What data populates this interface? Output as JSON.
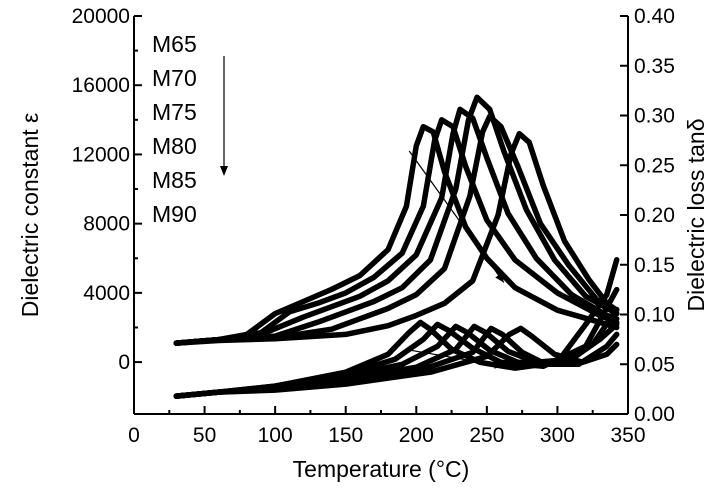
{
  "chart_data": {
    "type": "line",
    "xlabel": "Temperature (°C)",
    "ylabel_left": "Dielectric constant ε",
    "ylabel_right": "Dielectric loss tanδ",
    "xlim": [
      0,
      350
    ],
    "ylim_left": [
      -3000,
      20000
    ],
    "ylim_right": [
      0.0,
      0.4
    ],
    "x_ticks": [
      "0",
      "50",
      "100",
      "150",
      "200",
      "250",
      "300",
      "350"
    ],
    "y_left_ticks": [
      "0",
      "4000",
      "8000",
      "12000",
      "16000",
      "20000"
    ],
    "y_right_ticks": [
      "0.00",
      "0.05",
      "0.10",
      "0.15",
      "0.20",
      "0.25",
      "0.30",
      "0.35",
      "0.40"
    ],
    "legend": [
      "M65",
      "M70",
      "M75",
      "M80",
      "M85",
      "M90"
    ],
    "grid": false,
    "legend_placement": "top-left",
    "series": [
      {
        "name": "M65",
        "permittivity": [
          [
            30,
            1100
          ],
          [
            60,
            1300
          ],
          [
            80,
            1600
          ],
          [
            100,
            2800
          ],
          [
            120,
            3500
          ],
          [
            140,
            4200
          ],
          [
            160,
            5000
          ],
          [
            180,
            6500
          ],
          [
            193,
            9000
          ],
          [
            200,
            12500
          ],
          [
            205,
            13600
          ],
          [
            212,
            13300
          ],
          [
            220,
            11000
          ],
          [
            235,
            7800
          ],
          [
            250,
            6000
          ],
          [
            270,
            4300
          ],
          [
            300,
            3000
          ],
          [
            330,
            2300
          ],
          [
            342,
            2000
          ]
        ],
        "loss": [
          [
            30,
            0.018
          ],
          [
            60,
            0.022
          ],
          [
            100,
            0.028
          ],
          [
            150,
            0.042
          ],
          [
            180,
            0.06
          ],
          [
            195,
            0.082
          ],
          [
            203,
            0.092
          ],
          [
            210,
            0.085
          ],
          [
            225,
            0.065
          ],
          [
            245,
            0.052
          ],
          [
            270,
            0.046
          ],
          [
            300,
            0.052
          ],
          [
            320,
            0.09
          ],
          [
            335,
            0.12
          ],
          [
            342,
            0.155
          ]
        ]
      },
      {
        "name": "M70",
        "permittivity": [
          [
            30,
            1100
          ],
          [
            60,
            1300
          ],
          [
            90,
            1700
          ],
          [
            110,
            2900
          ],
          [
            130,
            3400
          ],
          [
            150,
            4000
          ],
          [
            170,
            4900
          ],
          [
            190,
            6300
          ],
          [
            205,
            9000
          ],
          [
            213,
            12800
          ],
          [
            218,
            14000
          ],
          [
            226,
            13600
          ],
          [
            235,
            11300
          ],
          [
            250,
            8200
          ],
          [
            270,
            5900
          ],
          [
            300,
            4000
          ],
          [
            330,
            2700
          ],
          [
            342,
            2300
          ]
        ],
        "loss": [
          [
            30,
            0.018
          ],
          [
            60,
            0.022
          ],
          [
            100,
            0.028
          ],
          [
            150,
            0.04
          ],
          [
            185,
            0.055
          ],
          [
            205,
            0.075
          ],
          [
            215,
            0.09
          ],
          [
            223,
            0.084
          ],
          [
            240,
            0.066
          ],
          [
            260,
            0.052
          ],
          [
            290,
            0.048
          ],
          [
            320,
            0.068
          ],
          [
            342,
            0.125
          ]
        ]
      },
      {
        "name": "M75",
        "permittivity": [
          [
            30,
            1100
          ],
          [
            60,
            1300
          ],
          [
            90,
            1600
          ],
          [
            120,
            2600
          ],
          [
            140,
            3200
          ],
          [
            160,
            3800
          ],
          [
            180,
            4700
          ],
          [
            200,
            6200
          ],
          [
            218,
            9500
          ],
          [
            226,
            13200
          ],
          [
            231,
            14600
          ],
          [
            240,
            14100
          ],
          [
            250,
            11800
          ],
          [
            265,
            8600
          ],
          [
            285,
            6000
          ],
          [
            310,
            3900
          ],
          [
            335,
            2700
          ],
          [
            342,
            2500
          ]
        ],
        "loss": [
          [
            30,
            0.018
          ],
          [
            60,
            0.022
          ],
          [
            100,
            0.027
          ],
          [
            150,
            0.038
          ],
          [
            190,
            0.05
          ],
          [
            215,
            0.068
          ],
          [
            228,
            0.088
          ],
          [
            236,
            0.082
          ],
          [
            252,
            0.064
          ],
          [
            272,
            0.052
          ],
          [
            300,
            0.05
          ],
          [
            325,
            0.07
          ],
          [
            342,
            0.105
          ]
        ]
      },
      {
        "name": "M80",
        "permittivity": [
          [
            30,
            1100
          ],
          [
            60,
            1300
          ],
          [
            100,
            1500
          ],
          [
            130,
            2300
          ],
          [
            150,
            2900
          ],
          [
            170,
            3500
          ],
          [
            190,
            4300
          ],
          [
            210,
            5900
          ],
          [
            228,
            10000
          ],
          [
            237,
            14000
          ],
          [
            243,
            15300
          ],
          [
            252,
            14600
          ],
          [
            262,
            12200
          ],
          [
            278,
            8800
          ],
          [
            298,
            5900
          ],
          [
            320,
            3800
          ],
          [
            342,
            2800
          ]
        ],
        "loss": [
          [
            30,
            0.018
          ],
          [
            60,
            0.022
          ],
          [
            100,
            0.026
          ],
          [
            150,
            0.035
          ],
          [
            200,
            0.047
          ],
          [
            228,
            0.065
          ],
          [
            241,
            0.088
          ],
          [
            249,
            0.082
          ],
          [
            265,
            0.063
          ],
          [
            285,
            0.052
          ],
          [
            310,
            0.055
          ],
          [
            330,
            0.075
          ],
          [
            342,
            0.09
          ]
        ]
      },
      {
        "name": "M85",
        "permittivity": [
          [
            30,
            1100
          ],
          [
            60,
            1300
          ],
          [
            100,
            1400
          ],
          [
            140,
            1900
          ],
          [
            160,
            2500
          ],
          [
            180,
            3100
          ],
          [
            200,
            3900
          ],
          [
            220,
            5400
          ],
          [
            238,
            9600
          ],
          [
            247,
            13300
          ],
          [
            252,
            14200
          ],
          [
            260,
            13600
          ],
          [
            272,
            11300
          ],
          [
            288,
            8000
          ],
          [
            308,
            5600
          ],
          [
            328,
            3600
          ],
          [
            342,
            2800
          ]
        ],
        "loss": [
          [
            30,
            0.018
          ],
          [
            60,
            0.022
          ],
          [
            100,
            0.025
          ],
          [
            150,
            0.033
          ],
          [
            205,
            0.045
          ],
          [
            240,
            0.062
          ],
          [
            253,
            0.086
          ],
          [
            261,
            0.08
          ],
          [
            275,
            0.062
          ],
          [
            292,
            0.05
          ],
          [
            315,
            0.05
          ],
          [
            335,
            0.068
          ],
          [
            342,
            0.08
          ]
        ]
      },
      {
        "name": "M90",
        "permittivity": [
          [
            30,
            1100
          ],
          [
            60,
            1250
          ],
          [
            100,
            1350
          ],
          [
            150,
            1600
          ],
          [
            180,
            2100
          ],
          [
            200,
            2700
          ],
          [
            220,
            3400
          ],
          [
            240,
            4700
          ],
          [
            258,
            8500
          ],
          [
            267,
            12000
          ],
          [
            273,
            13200
          ],
          [
            280,
            12700
          ],
          [
            290,
            10200
          ],
          [
            305,
            7000
          ],
          [
            322,
            4800
          ],
          [
            335,
            3400
          ],
          [
            342,
            3000
          ]
        ],
        "loss": [
          [
            30,
            0.018
          ],
          [
            60,
            0.022
          ],
          [
            100,
            0.024
          ],
          [
            150,
            0.03
          ],
          [
            210,
            0.042
          ],
          [
            250,
            0.058
          ],
          [
            266,
            0.08
          ],
          [
            274,
            0.086
          ],
          [
            282,
            0.078
          ],
          [
            298,
            0.06
          ],
          [
            318,
            0.052
          ],
          [
            335,
            0.06
          ],
          [
            342,
            0.07
          ]
        ]
      }
    ]
  }
}
